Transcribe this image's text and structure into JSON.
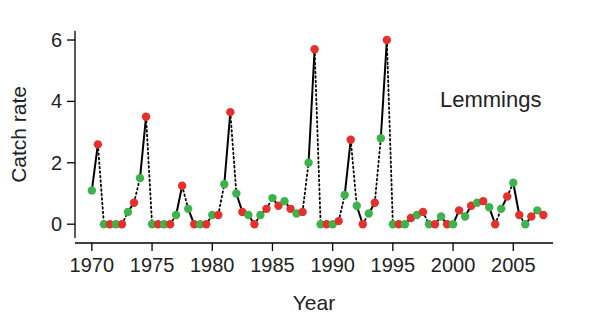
{
  "chart_data": {
    "type": "line",
    "annotation": "Lemmings",
    "x_label": "Year",
    "y_label": "Catch rate",
    "x": [
      1970,
      1970.5,
      1971,
      1971.5,
      1972,
      1972.5,
      1973,
      1973.5,
      1974,
      1974.5,
      1975,
      1975.5,
      1976,
      1976.5,
      1977,
      1977.5,
      1978,
      1978.5,
      1979,
      1979.5,
      1980,
      1980.5,
      1981,
      1981.5,
      1982,
      1982.5,
      1983,
      1983.5,
      1984,
      1984.5,
      1985,
      1985.5,
      1986,
      1986.5,
      1987,
      1987.5,
      1988,
      1988.5,
      1989,
      1989.5,
      1990,
      1990.5,
      1991,
      1991.5,
      1992,
      1992.5,
      1993,
      1993.5,
      1994,
      1994.5,
      1995,
      1995.5,
      1996,
      1996.5,
      1997,
      1997.5,
      1998,
      1998.5,
      1999,
      1999.5,
      2000,
      2000.5,
      2001,
      2001.5,
      2002,
      2002.5,
      2003,
      2003.5,
      2004,
      2004.5,
      2005,
      2005.5,
      2006,
      2006.5,
      2007,
      2007.5
    ],
    "series": [
      {
        "values": [
          1.1,
          2.6,
          0,
          0,
          0,
          0,
          0.4,
          0.7,
          1.5,
          3.5,
          0,
          0,
          0,
          0,
          0.3,
          1.25,
          0.5,
          0,
          0,
          0,
          0.3,
          0.3,
          1.3,
          3.65,
          1.0,
          0.4,
          0.3,
          0,
          0.3,
          0.5,
          0.85,
          0.6,
          0.75,
          0.5,
          0.35,
          0.4,
          2.0,
          5.7,
          0,
          0,
          0,
          0.1,
          0.95,
          2.75,
          0.6,
          0,
          0.35,
          0.7,
          2.8,
          6.0,
          0,
          0,
          0,
          0.2,
          0.3,
          0.4,
          0,
          0,
          0.25,
          0,
          0,
          0.45,
          0.25,
          0.6,
          0.7,
          0.75,
          0.55,
          0,
          0.5,
          0.9,
          1.35,
          0.3,
          0,
          0.25,
          0.45,
          0.3
        ],
        "colors": [
          "#3cb44b",
          "#e6302b",
          "#3cb44b",
          "#e6302b",
          "#3cb44b",
          "#e6302b",
          "#3cb44b",
          "#e6302b",
          "#3cb44b",
          "#e6302b",
          "#3cb44b",
          "#e6302b",
          "#3cb44b",
          "#e6302b",
          "#3cb44b",
          "#e6302b",
          "#3cb44b",
          "#e6302b",
          "#3cb44b",
          "#e6302b",
          "#3cb44b",
          "#e6302b",
          "#3cb44b",
          "#e6302b",
          "#3cb44b",
          "#e6302b",
          "#3cb44b",
          "#e6302b",
          "#3cb44b",
          "#e6302b",
          "#3cb44b",
          "#e6302b",
          "#3cb44b",
          "#e6302b",
          "#3cb44b",
          "#e6302b",
          "#3cb44b",
          "#e6302b",
          "#3cb44b",
          "#e6302b",
          "#3cb44b",
          "#e6302b",
          "#3cb44b",
          "#e6302b",
          "#3cb44b",
          "#e6302b",
          "#3cb44b",
          "#e6302b",
          "#3cb44b",
          "#e6302b",
          "#3cb44b",
          "#e6302b",
          "#3cb44b",
          "#e6302b",
          "#3cb44b",
          "#e6302b",
          "#3cb44b",
          "#e6302b",
          "#3cb44b",
          "#e6302b",
          "#3cb44b",
          "#e6302b",
          "#3cb44b",
          "#e6302b",
          "#3cb44b",
          "#e6302b",
          "#3cb44b",
          "#e6302b",
          "#3cb44b",
          "#e6302b",
          "#3cb44b",
          "#e6302b",
          "#3cb44b",
          "#e6302b",
          "#3cb44b",
          "#e6302b"
        ],
        "color": "#000000",
        "marker": "circle",
        "line_style": "alternating"
      }
    ],
    "xlim": [
      1968.6,
      2008.3
    ],
    "xticks": [
      1970,
      1975,
      1980,
      1985,
      1990,
      1995,
      2000,
      2005
    ],
    "ylim": [
      -0.45,
      6.3
    ],
    "yticks": [
      0,
      2,
      4,
      6
    ],
    "grid": false
  }
}
